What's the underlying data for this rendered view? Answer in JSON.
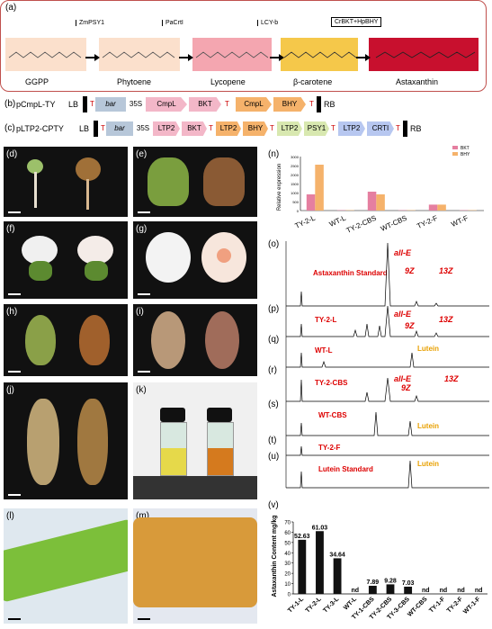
{
  "panel_a": {
    "label": "(a)",
    "enzymes": [
      "ZmPSY1",
      "PaCrtI",
      "LCY-b",
      "CrBKT+HpBHY"
    ],
    "compounds": [
      "GGPP",
      "Phytoene",
      "Lycopene",
      "β-carotene",
      "Astaxanthin"
    ],
    "colors": [
      "#fbe0cc",
      "#f5d2cc",
      "#f4a6b0",
      "#f5c84a",
      "#c8102e"
    ]
  },
  "panel_b": {
    "label": "(b)",
    "name": "pCmpL-TY",
    "segments": [
      "LB",
      "T",
      "bar",
      "35S",
      "CmpL",
      "BKT",
      "T",
      "CmpL",
      "BHY",
      "T",
      "RB"
    ]
  },
  "panel_c": {
    "label": "(c)",
    "name": "pLTP2-CPTY",
    "segments": [
      "LB",
      "T",
      "bar",
      "35S",
      "LTP2",
      "BKT",
      "T",
      "LTP2",
      "BHY",
      "T",
      "LTP2",
      "PSY1",
      "T",
      "LTP2",
      "CRTI",
      "T",
      "RB"
    ]
  },
  "photo_labels": [
    "(d)",
    "(e)",
    "(f)",
    "(g)",
    "(h)",
    "(i)",
    "(j)",
    "(k)",
    "(l)",
    "(m)"
  ],
  "panel_n": {
    "label": "(n)",
    "legend": [
      "BKT",
      "BHY"
    ],
    "ylabel": "Relative expression",
    "colors": [
      "#e57fa0",
      "#f5b26b"
    ]
  },
  "chart_data": [
    {
      "type": "bar",
      "categories": [
        "TY-2-L",
        "WT-L",
        "TY-2-CBS",
        "WT-CBS",
        "TY-2-F",
        "WT-F"
      ],
      "series": [
        {
          "name": "BKT",
          "values": [
            900,
            20,
            1050,
            20,
            330,
            20
          ]
        },
        {
          "name": "BHY",
          "values": [
            2550,
            20,
            900,
            20,
            330,
            20
          ]
        }
      ],
      "ylim": [
        0,
        3000
      ],
      "yticks": [
        "0",
        "500",
        "1000",
        "1500",
        "2000",
        "2500",
        "3000"
      ]
    },
    {
      "type": "bar",
      "title": "",
      "ylabel": "Astaxanthin Content mg/kg",
      "categories": [
        "TY-1-L",
        "TY-2-L",
        "TY-3-L",
        "WT-L",
        "TY-1-CBS",
        "TY-2-CBS",
        "TY-3-CBS",
        "WT-CBS",
        "TY-1-F",
        "TY-2-F",
        "WT-1-F"
      ],
      "values": [
        52.63,
        61.03,
        34.64,
        0,
        7.89,
        9.28,
        7.03,
        0,
        0,
        0,
        0
      ],
      "value_labels": [
        "52.63",
        "61.03",
        "34.64",
        "nd",
        "7.89",
        "9.28",
        "7.03",
        "nd",
        "nd",
        "nd",
        "nd"
      ],
      "ylim": [
        0,
        70
      ],
      "yticks": [
        "0",
        "10",
        "20",
        "30",
        "40",
        "50",
        "60",
        "70"
      ]
    }
  ],
  "chromatograms": {
    "o": {
      "label": "(o)",
      "name": "Astaxanthin Standard",
      "peaks": [
        "all-E",
        "9Z",
        "13Z"
      ]
    },
    "p": {
      "label": "(p)",
      "name": "TY-2-L",
      "peaks": [
        "all-E",
        "9Z",
        "13Z"
      ]
    },
    "q": {
      "label": "(q)",
      "name": "WT-L",
      "peaks": [
        "Lutein"
      ]
    },
    "r": {
      "label": "(r)",
      "name": "TY-2-CBS",
      "peaks": [
        "all-E",
        "9Z",
        "13Z"
      ]
    },
    "s": {
      "label": "(s)",
      "name": "WT-CBS",
      "peaks": [
        "Lutein"
      ]
    },
    "t": {
      "label": "(t)",
      "name": "TY-2-F",
      "peaks": []
    },
    "u": {
      "label": "(u)",
      "name": "Lutein Standard",
      "peaks": [
        "Lutein"
      ]
    }
  },
  "panel_v": {
    "label": "(v)"
  }
}
